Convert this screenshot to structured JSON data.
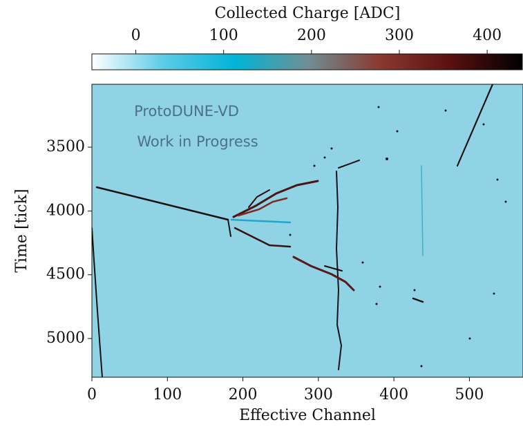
{
  "chart_data": {
    "type": "heatmap",
    "colorbar_label": "Collected Charge [ADC]",
    "clim": [
      -50,
      440
    ],
    "cticks": [
      0,
      100,
      200,
      300,
      400
    ],
    "colormap": [
      "#ffffff",
      "#5ccbe6",
      "#00b4d6",
      "#6f8f96",
      "#8a3a30",
      "#5a1010",
      "#000000"
    ],
    "background_color": "#8fd3e5",
    "x_label": "Effective Channel",
    "y_label": "Time [tick]",
    "xlim": [
      0,
      571
    ],
    "xticks": [
      0,
      100,
      200,
      300,
      400,
      500
    ],
    "ylim": [
      5303,
      3007
    ],
    "yticks": [
      3500,
      4000,
      4500,
      5000
    ],
    "annotations": [
      "ProtoDUNE-VD",
      "Work in Progress"
    ]
  }
}
